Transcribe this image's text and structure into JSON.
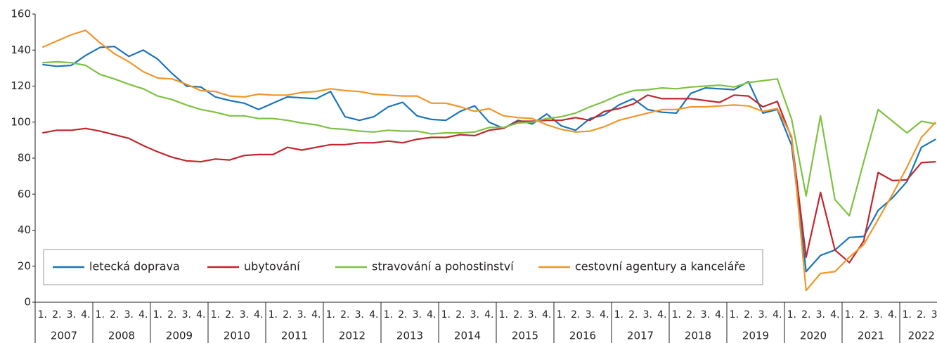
{
  "chart_data": {
    "type": "line",
    "groups": [
      {
        "name": "2007",
        "categories": [
          "1.",
          "2.",
          "3.",
          "4."
        ]
      },
      {
        "name": "2008",
        "categories": [
          "1.",
          "2.",
          "3.",
          "4."
        ]
      },
      {
        "name": "2009",
        "categories": [
          "1.",
          "2.",
          "3.",
          "4."
        ]
      },
      {
        "name": "2010",
        "categories": [
          "1.",
          "2.",
          "3.",
          "4."
        ]
      },
      {
        "name": "2011",
        "categories": [
          "1.",
          "2.",
          "3.",
          "4."
        ]
      },
      {
        "name": "2012",
        "categories": [
          "1.",
          "2.",
          "3.",
          "4."
        ]
      },
      {
        "name": "2013",
        "categories": [
          "1.",
          "2.",
          "3.",
          "4."
        ]
      },
      {
        "name": "2014",
        "categories": [
          "1.",
          "2.",
          "3.",
          "4."
        ]
      },
      {
        "name": "2015",
        "categories": [
          "1.",
          "2.",
          "3.",
          "4."
        ]
      },
      {
        "name": "2016",
        "categories": [
          "1.",
          "2.",
          "3.",
          "4."
        ]
      },
      {
        "name": "2017",
        "categories": [
          "1.",
          "2.",
          "3.",
          "4."
        ]
      },
      {
        "name": "2018",
        "categories": [
          "1.",
          "2.",
          "3.",
          "4."
        ]
      },
      {
        "name": "2019",
        "categories": [
          "1.",
          "2.",
          "3.",
          "4."
        ]
      },
      {
        "name": "2020",
        "categories": [
          "1.",
          "2.",
          "3.",
          "4."
        ]
      },
      {
        "name": "2021",
        "categories": [
          "1.",
          "2.",
          "3.",
          "4."
        ]
      },
      {
        "name": "2022",
        "categories": [
          "1.",
          "2.",
          "3."
        ]
      }
    ],
    "series": [
      {
        "name": "letecká doprava",
        "color": "#1b75b9",
        "values": [
          132,
          131,
          131.5,
          137,
          141.5,
          142,
          136.5,
          140,
          135,
          127,
          120,
          119.5,
          114,
          112,
          110.5,
          107,
          110.5,
          114,
          113.5,
          113,
          117,
          103,
          101,
          103,
          108.5,
          111,
          103.5,
          101.5,
          101,
          106,
          109,
          100,
          96.5,
          101,
          99,
          104.5,
          98,
          95.5,
          102,
          104,
          109.5,
          113,
          107,
          105.5,
          105,
          116,
          119,
          118.5,
          118,
          122.5,
          105,
          107,
          87,
          17,
          26,
          29,
          36,
          36.5,
          51,
          58,
          67,
          86,
          90.5
        ]
      },
      {
        "name": "ubytování",
        "color": "#c1272d",
        "values": [
          94,
          95.5,
          95.5,
          96.5,
          95,
          93,
          91,
          87,
          83.5,
          80.5,
          78.5,
          78,
          79.5,
          79,
          81.5,
          82,
          82,
          86,
          84.5,
          86,
          87.5,
          87.5,
          88.5,
          88.5,
          89.5,
          88.5,
          90.5,
          91.5,
          91.5,
          93,
          92.5,
          95.5,
          96.5,
          100.5,
          100.5,
          101,
          101,
          102.5,
          101,
          106,
          107.5,
          110,
          115,
          113,
          113,
          113,
          112,
          111,
          115,
          114.5,
          108.5,
          111.5,
          91,
          25,
          61,
          29,
          22,
          34,
          72,
          67.5,
          68,
          77.5,
          78
        ]
      },
      {
        "name": "stravování a pohostinství",
        "color": "#7dc242",
        "values": [
          133,
          133.5,
          133,
          131.5,
          126.5,
          124,
          121,
          118.5,
          114.5,
          112.5,
          109.5,
          107,
          105.5,
          103.5,
          103.5,
          102,
          102,
          101,
          99.5,
          98.5,
          96.5,
          96,
          95,
          94.5,
          95.5,
          95,
          95,
          93.5,
          94,
          94,
          94.5,
          97,
          97,
          99.5,
          100,
          102,
          103,
          105,
          108.5,
          111.5,
          115,
          117.5,
          118,
          119,
          118.5,
          119.5,
          120,
          120.5,
          119.5,
          122,
          123,
          124,
          101.5,
          59,
          103.5,
          57,
          48,
          78,
          107,
          100.5,
          94,
          100.5,
          99
        ]
      },
      {
        "name": "cestovní agentury a kanceláře",
        "color": "#f0962b",
        "values": [
          141.5,
          145,
          148.5,
          151,
          144,
          138,
          133.5,
          128,
          124.5,
          124,
          121,
          117.5,
          117,
          114.5,
          114,
          115.5,
          115,
          115,
          116.5,
          117,
          118.5,
          117.5,
          117,
          115.5,
          115,
          114.5,
          114.5,
          110.5,
          110.5,
          108.5,
          106,
          107.5,
          103.5,
          102.5,
          102,
          98.5,
          96,
          94.5,
          95,
          97.5,
          101,
          103,
          105,
          107,
          107,
          108.5,
          108.5,
          109,
          109.5,
          109,
          106,
          107.5,
          92,
          6.5,
          16,
          17,
          25,
          32,
          46,
          60,
          75,
          91.5,
          100
        ]
      }
    ],
    "ylim": [
      0,
      160
    ],
    "yticks": [
      0,
      20,
      40,
      60,
      80,
      100,
      120,
      140,
      160
    ],
    "grid": false
  }
}
